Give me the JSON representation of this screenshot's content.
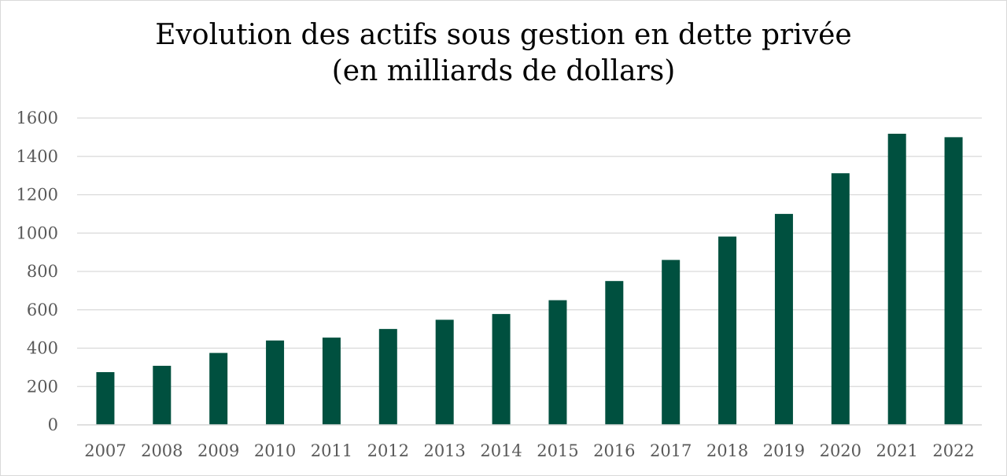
{
  "chart_data": {
    "type": "bar",
    "title": "Evolution des actifs sous gestion en dette privée (en milliards de dollars)",
    "xlabel": "",
    "ylabel": "",
    "categories": [
      "2007",
      "2008",
      "2009",
      "2010",
      "2011",
      "2012",
      "2013",
      "2014",
      "2015",
      "2016",
      "2017",
      "2018",
      "2019",
      "2020",
      "2021",
      "2022"
    ],
    "values": [
      275,
      308,
      375,
      440,
      455,
      500,
      548,
      578,
      650,
      750,
      860,
      982,
      1100,
      1312,
      1518,
      1500
    ],
    "ylim": [
      0,
      1600
    ],
    "yticks": [
      0,
      200,
      400,
      600,
      800,
      1000,
      1200,
      1400,
      1600
    ],
    "grid": true,
    "legend": "none",
    "bar_color": "#00503f",
    "grid_color": "#d9d9d9"
  }
}
